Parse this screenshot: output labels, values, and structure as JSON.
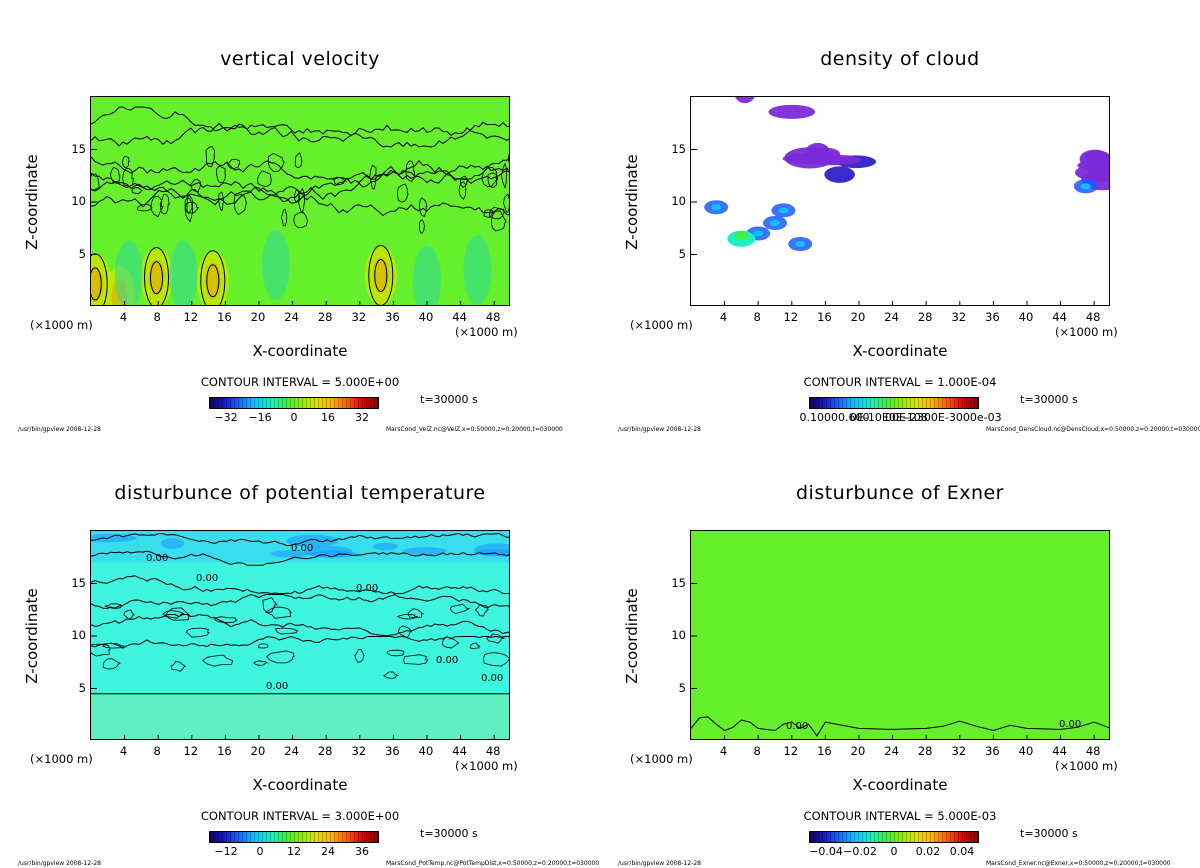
{
  "chart_data": [
    {
      "type": "heatmap",
      "title": "vertical velocity",
      "xlabel": "X-coordinate",
      "ylabel": "Z-coordinate",
      "x_unit_left": "(×1000 m)",
      "x_unit_right": "(×1000 m)",
      "x_ticks": [
        "4",
        "8",
        "12",
        "16",
        "20",
        "24",
        "28",
        "32",
        "36",
        "40",
        "44",
        "48"
      ],
      "y_ticks": [
        "5",
        "10",
        "15"
      ],
      "xlim": [
        0,
        50
      ],
      "ylim": [
        0,
        20
      ],
      "contour_interval": "CONTOUR INTERVAL = 5.000E+00",
      "time_label": "t=30000 s",
      "colorbar_ticks": [
        "−32",
        "−16",
        "0",
        "16",
        "32"
      ],
      "colorbar_range": [
        -40,
        40
      ],
      "footer_left": "/usr/bin/gpview  2008-12-28",
      "footer_right": "MarsCond_VelZ.nc@VelZ,x=0:50000,z=0:20000,t=030000",
      "background_color": "#66f02c",
      "contour_labels": []
    },
    {
      "type": "heatmap",
      "title": "density of cloud",
      "xlabel": "X-coordinate",
      "ylabel": "Z-coordinate",
      "x_unit_left": "(×1000 m)",
      "x_unit_right": "(×1000 m)",
      "x_ticks": [
        "4",
        "8",
        "12",
        "16",
        "20",
        "24",
        "28",
        "32",
        "36",
        "40",
        "44",
        "48"
      ],
      "y_ticks": [
        "5",
        "10",
        "15"
      ],
      "xlim": [
        0,
        50
      ],
      "ylim": [
        0,
        20
      ],
      "contour_interval": "CONTOUR INTERVAL = 1.000E-04",
      "time_label": "t=30000 s",
      "colorbar_ticks": [
        "0.10000.600",
        "0E-10E0E-108",
        "00E-2300E-3000e-03"
      ],
      "colorbar_range": [
        0,
        0.001
      ],
      "footer_left": "/usr/bin/gpview  2008-12-28",
      "footer_right": "MarsCond_DensCloud.nc@DensCloud,x=0:50000,z=0:20000,t=030000",
      "background_color": "#ffffff",
      "contour_labels": []
    },
    {
      "type": "heatmap",
      "title": "disturbunce of potential temperature",
      "xlabel": "X-coordinate",
      "ylabel": "Z-coordinate",
      "x_unit_left": "(×1000 m)",
      "x_unit_right": "(×1000 m)",
      "x_ticks": [
        "4",
        "8",
        "12",
        "16",
        "20",
        "24",
        "28",
        "32",
        "36",
        "40",
        "44",
        "48"
      ],
      "y_ticks": [
        "5",
        "10",
        "15"
      ],
      "xlim": [
        0,
        50
      ],
      "ylim": [
        0,
        20
      ],
      "contour_interval": "CONTOUR INTERVAL = 3.000E+00",
      "time_label": "t=30000 s",
      "colorbar_ticks": [
        "−12",
        "0",
        "12",
        "24",
        "36"
      ],
      "colorbar_range": [
        -18,
        42
      ],
      "footer_left": "/usr/bin/gpview  2008-12-28",
      "footer_right": "MarsCond_PotTemp.nc@PotTempDist,x=0:50000,z=0:20000,t=030000",
      "background_color": "#3ef5e0",
      "contour_labels": [
        "0.00",
        "0.00",
        "0.00",
        "0.00",
        "0.00",
        "0.00",
        "0.00"
      ]
    },
    {
      "type": "heatmap",
      "title": "disturbunce of Exner",
      "xlabel": "X-coordinate",
      "ylabel": "Z-coordinate",
      "x_unit_left": "(×1000 m)",
      "x_unit_right": "(×1000 m)",
      "x_ticks": [
        "4",
        "8",
        "12",
        "16",
        "20",
        "24",
        "28",
        "32",
        "36",
        "40",
        "44",
        "48"
      ],
      "y_ticks": [
        "5",
        "10",
        "15"
      ],
      "xlim": [
        0,
        50
      ],
      "ylim": [
        0,
        20
      ],
      "contour_interval": "CONTOUR INTERVAL = 5.000E-03",
      "time_label": "t=30000 s",
      "colorbar_ticks": [
        "−0.04",
        "−0.02",
        "0",
        "0.02",
        "0.04"
      ],
      "colorbar_range": [
        -0.05,
        0.05
      ],
      "footer_left": "/usr/bin/gpview  2008-12-28",
      "footer_right": "MarsCond_Exner.nc@Exner,x=0:50000,z=0:20000,t=030000",
      "background_color": "#66f02c",
      "contour_labels": [
        "0.00",
        "0.00"
      ]
    }
  ]
}
